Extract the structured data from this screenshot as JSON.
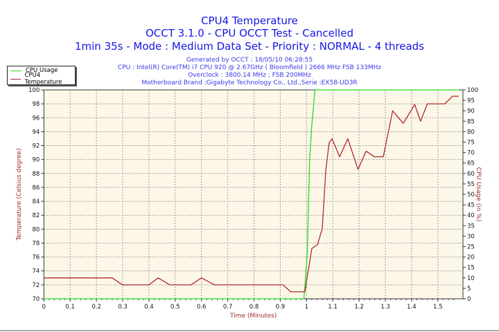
{
  "header": {
    "title": "CPU4 Temperature",
    "subtitle": "OCCT 3.1.0 - CPU OCCT Test - Cancelled",
    "run_info": "1min 35s - Mode : Medium Data Set - Priority : NORMAL - 4 threads",
    "generated": "Generated by OCCT : 18/05/10 06:28:55",
    "cpu": "CPU : Intel(R) Core(TM) i7 CPU 920 @ 2.67GHz ( Bloomfield ) 2666 MHz FSB 133MHz",
    "overclock": "Overclock : 3800.14 MHz ; FSB 200MHz",
    "motherboard": "Motherboard Brand :Gigabyte Technology Co., Ltd.,Serie :EX58-UD3R"
  },
  "chart_data": {
    "type": "line",
    "xlabel": "Time (Minutes)",
    "ylabel": "Temperature (Celsius degree)",
    "y2label": "CPU Usage (in %)",
    "xlim": [
      0,
      1.6
    ],
    "ylim": [
      70,
      100
    ],
    "y2lim": [
      0,
      100
    ],
    "x_ticks": [
      "0",
      "0.1",
      "0.2",
      "0.3",
      "0.4",
      "0.5",
      "0.6",
      "0.7",
      "0.8",
      "0.9",
      "1",
      "1.1",
      "1.2",
      "1.3",
      "1.4",
      "1.5"
    ],
    "y_ticks": [
      "70",
      "72",
      "74",
      "76",
      "78",
      "80",
      "82",
      "84",
      "86",
      "88",
      "90",
      "92",
      "94",
      "96",
      "98",
      "100"
    ],
    "y2_ticks": [
      "0",
      "5",
      "10",
      "15",
      "20",
      "25",
      "30",
      "35",
      "40",
      "45",
      "50",
      "55",
      "60",
      "65",
      "70",
      "75",
      "80",
      "85",
      "90",
      "95",
      "100"
    ],
    "grid": true,
    "legend": "top-left",
    "plot_background": "#fdf7e8",
    "series": [
      {
        "name": "CPU Usage",
        "axis": "right",
        "color": "#22dd22",
        "x": [
          0,
          0.99,
          1.003,
          1.012,
          1.02,
          1.032,
          1.58
        ],
        "y": [
          0,
          0,
          22,
          67,
          83,
          100,
          100
        ]
      },
      {
        "name": "CPU4 Temperature",
        "axis": "left",
        "color": "#b02828",
        "x": [
          0,
          0.26,
          0.3,
          0.4,
          0.435,
          0.48,
          0.56,
          0.6,
          0.65,
          0.91,
          0.94,
          0.994,
          1.003,
          1.02,
          1.042,
          1.06,
          1.073,
          1.086,
          1.097,
          1.126,
          1.157,
          1.196,
          1.227,
          1.258,
          1.292,
          1.328,
          1.368,
          1.412,
          1.434,
          1.46,
          1.526,
          1.556,
          1.58
        ],
        "y": [
          73,
          73,
          72,
          72,
          73,
          72,
          72,
          73,
          72,
          72,
          71,
          71,
          73.2,
          77.2,
          77.8,
          80.1,
          88.4,
          92.4,
          93.0,
          90.4,
          93.0,
          88.6,
          91.2,
          90.4,
          90.4,
          97.0,
          95.2,
          97.9,
          95.5,
          98.0,
          98.0,
          99.1,
          99.1
        ]
      }
    ]
  }
}
